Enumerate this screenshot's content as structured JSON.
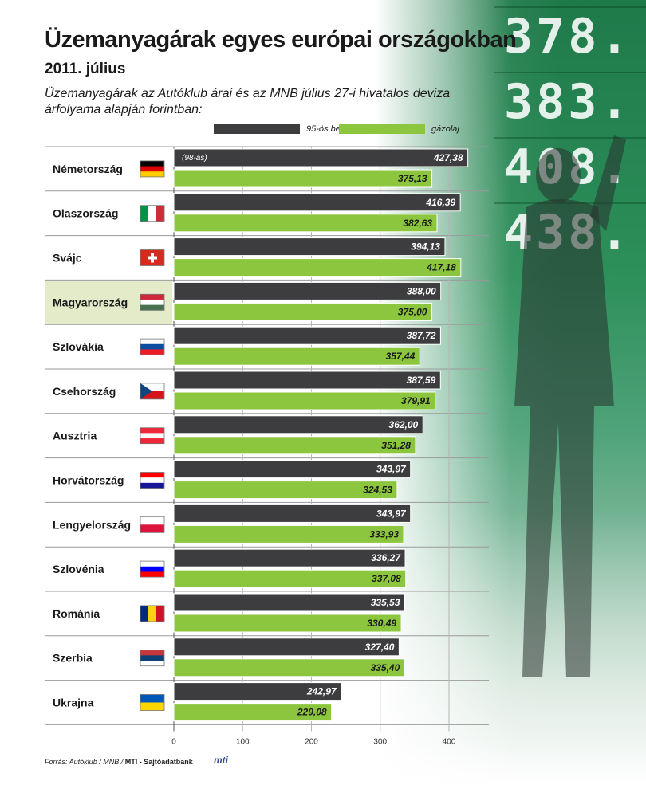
{
  "header": {
    "title": "Üzemanyagárak egyes európai országokban",
    "subtitle": "2011. július",
    "description": "Üzemanyagárak az Autóklub árai és az MNB július 27-i hivatalos deviza árfolyama alapján forintban:"
  },
  "legend": {
    "benzin_label": "95-ös benzin",
    "gazolaj_label": "gázolaj"
  },
  "note_98": "(98-as)",
  "background_board": [
    "378.",
    "383.",
    "408.",
    "438."
  ],
  "source": {
    "prefix": "Forrás: Autóklub / MNB / ",
    "bold": "MTI - Sajtóadatbank",
    "logo": "mti"
  },
  "colors": {
    "benzin": "#3d3d3f",
    "gazolaj": "#8cc63f",
    "highlight_row": "#e3ebc8",
    "text": "#1a1a1a"
  },
  "chart_data": {
    "type": "bar",
    "orientation": "horizontal",
    "categories": [
      "Németország",
      "Olaszország",
      "Svájc",
      "Magyarország",
      "Szlovákia",
      "Csehország",
      "Ausztria",
      "Horvátország",
      "Lengyelország",
      "Szlovénia",
      "Románia",
      "Szerbia",
      "Ukrajna"
    ],
    "flags": [
      {
        "type": "h",
        "colors": [
          "#000000",
          "#dd0000",
          "#ffce00"
        ]
      },
      {
        "type": "v",
        "colors": [
          "#009246",
          "#ffffff",
          "#ce2b37"
        ]
      },
      {
        "type": "swiss",
        "colors": [
          "#d52b1e",
          "#ffffff"
        ]
      },
      {
        "type": "h",
        "colors": [
          "#ce2939",
          "#ffffff",
          "#477050"
        ]
      },
      {
        "type": "h",
        "colors": [
          "#ffffff",
          "#0b4ea2",
          "#ee1c25"
        ]
      },
      {
        "type": "cz",
        "colors": [
          "#ffffff",
          "#d7141a",
          "#11457e"
        ]
      },
      {
        "type": "h",
        "colors": [
          "#ed2939",
          "#ffffff",
          "#ed2939"
        ]
      },
      {
        "type": "h",
        "colors": [
          "#ff0000",
          "#ffffff",
          "#171796"
        ]
      },
      {
        "type": "h",
        "colors": [
          "#ffffff",
          "#dc143c"
        ]
      },
      {
        "type": "h",
        "colors": [
          "#ffffff",
          "#0000ff",
          "#ff0000"
        ]
      },
      {
        "type": "v",
        "colors": [
          "#002b7f",
          "#fcd116",
          "#ce1126"
        ]
      },
      {
        "type": "h",
        "colors": [
          "#c6363c",
          "#0c4076",
          "#ffffff"
        ]
      },
      {
        "type": "h",
        "colors": [
          "#0057b7",
          "#ffd700"
        ]
      }
    ],
    "series": [
      {
        "name": "95-ös benzin",
        "values": [
          427.38,
          416.39,
          394.13,
          388.0,
          387.72,
          387.59,
          362.0,
          343.97,
          343.97,
          336.27,
          335.53,
          327.4,
          242.97
        ]
      },
      {
        "name": "gázolaj",
        "values": [
          375.13,
          382.63,
          417.18,
          375.0,
          357.44,
          379.91,
          351.28,
          324.53,
          333.93,
          337.08,
          330.49,
          335.4,
          229.08
        ]
      }
    ],
    "value_labels": {
      "benzin": [
        "427,38",
        "416,39",
        "394,13",
        "388,00",
        "387,72",
        "387,59",
        "362,00",
        "343,97",
        "343,97",
        "336,27",
        "335,53",
        "327,40",
        "242,97"
      ],
      "gazolaj": [
        "375,13",
        "382,63",
        "417,18",
        "375,00",
        "357,44",
        "379,91",
        "351,28",
        "324,53",
        "333,93",
        "337,08",
        "330,49",
        "335,40",
        "229,08"
      ]
    },
    "highlight_category": "Magyarország",
    "xlim": [
      0,
      400
    ],
    "xticks": [
      0,
      100,
      200,
      300,
      400
    ],
    "grid": true,
    "legend_position": "top"
  }
}
